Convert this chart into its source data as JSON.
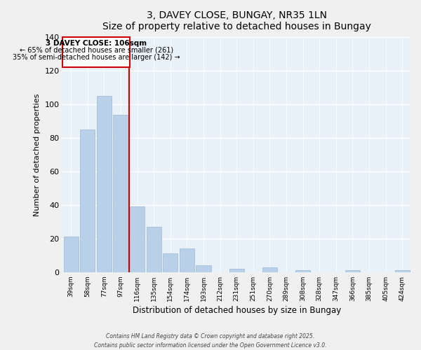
{
  "title": "3, DAVEY CLOSE, BUNGAY, NR35 1LN",
  "subtitle": "Size of property relative to detached houses in Bungay",
  "xlabel": "Distribution of detached houses by size in Bungay",
  "ylabel": "Number of detached properties",
  "bar_labels": [
    "39sqm",
    "58sqm",
    "77sqm",
    "97sqm",
    "116sqm",
    "135sqm",
    "154sqm",
    "174sqm",
    "193sqm",
    "212sqm",
    "231sqm",
    "251sqm",
    "270sqm",
    "289sqm",
    "308sqm",
    "328sqm",
    "347sqm",
    "366sqm",
    "385sqm",
    "405sqm",
    "424sqm"
  ],
  "bar_values": [
    21,
    85,
    105,
    94,
    39,
    27,
    11,
    14,
    4,
    0,
    2,
    0,
    3,
    0,
    1,
    0,
    0,
    1,
    0,
    0,
    1
  ],
  "bar_color": "#b8d0e8",
  "bar_edge_color": "#9ab8d4",
  "ylim": [
    0,
    140
  ],
  "yticks": [
    0,
    20,
    40,
    60,
    80,
    100,
    120,
    140
  ],
  "property_line_label": "3 DAVEY CLOSE: 106sqm",
  "annotation_line1": "← 65% of detached houses are smaller (261)",
  "annotation_line2": "35% of semi-detached houses are larger (142) →",
  "annotation_box_color": "#ffffff",
  "annotation_box_edge": "#cc0000",
  "vline_color": "#cc0000",
  "footer1": "Contains HM Land Registry data © Crown copyright and database right 2025.",
  "footer2": "Contains public sector information licensed under the Open Government Licence v3.0.",
  "fig_background": "#f0f0f0",
  "plot_background": "#e8f0f8",
  "grid_color": "#ffffff",
  "title_fontsize": 10,
  "subtitle_fontsize": 9
}
